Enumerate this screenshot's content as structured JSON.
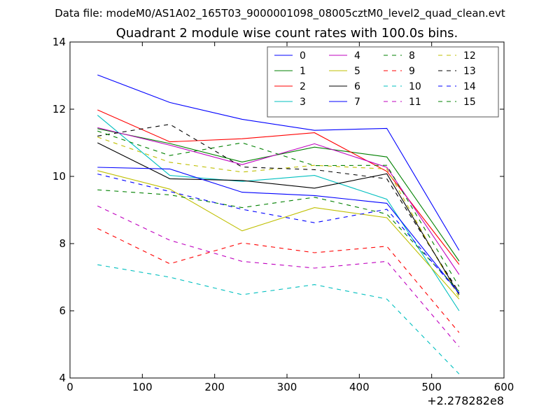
{
  "figure": {
    "suptitle": "Data file: modeM0/AS1A02_165T03_9000001098_08005cztM0_level2_quad_clean.evt"
  },
  "chart_data": {
    "type": "line",
    "title": "Quadrant 2 module wise count rates with 100.0s bins.",
    "xlabel": "",
    "ylabel": "",
    "x_offset_label": "+2.278282e8",
    "xlim": [
      0,
      600
    ],
    "ylim": [
      4,
      14
    ],
    "x_ticks": [
      "0",
      "100",
      "200",
      "300",
      "400",
      "500",
      "600"
    ],
    "y_ticks": [
      "4",
      "6",
      "8",
      "10",
      "12",
      "14"
    ],
    "x": [
      38,
      138,
      238,
      338,
      438,
      538
    ],
    "legend_position": "top-right",
    "legend_columns": 4,
    "series": [
      {
        "name": "0",
        "color": "#0000ff",
        "dash": "solid",
        "values": [
          13.02,
          12.2,
          11.7,
          11.37,
          11.43,
          7.8
        ]
      },
      {
        "name": "1",
        "color": "#008000",
        "dash": "solid",
        "values": [
          11.42,
          10.98,
          10.43,
          10.87,
          10.58,
          7.48
        ]
      },
      {
        "name": "2",
        "color": "#ff0000",
        "dash": "solid",
        "values": [
          11.98,
          11.03,
          11.12,
          11.3,
          10.15,
          7.38
        ]
      },
      {
        "name": "3",
        "color": "#00bfbf",
        "dash": "solid",
        "values": [
          11.82,
          10.03,
          9.85,
          10.03,
          9.32,
          6.0
        ]
      },
      {
        "name": "4",
        "color": "#bf00bf",
        "dash": "solid",
        "values": [
          11.45,
          10.93,
          10.35,
          10.97,
          10.27,
          7.08
        ]
      },
      {
        "name": "5",
        "color": "#bfbf00",
        "dash": "solid",
        "values": [
          10.17,
          9.62,
          8.38,
          9.07,
          8.77,
          6.35
        ]
      },
      {
        "name": "6",
        "color": "#000000",
        "dash": "solid",
        "values": [
          11.0,
          9.93,
          9.88,
          9.65,
          10.08,
          6.48
        ]
      },
      {
        "name": "7",
        "color": "#0000ff",
        "dash": "solid",
        "values": [
          10.27,
          10.22,
          9.53,
          9.43,
          9.2,
          6.52
        ]
      },
      {
        "name": "8",
        "color": "#008000",
        "dash": "dashed",
        "values": [
          9.6,
          9.45,
          9.07,
          9.38,
          8.88,
          6.58
        ]
      },
      {
        "name": "9",
        "color": "#ff0000",
        "dash": "dashed",
        "values": [
          8.45,
          7.4,
          8.02,
          7.73,
          7.92,
          5.35
        ]
      },
      {
        "name": "10",
        "color": "#00bfbf",
        "dash": "dashed",
        "values": [
          7.37,
          7.0,
          6.48,
          6.78,
          6.35,
          4.12
        ]
      },
      {
        "name": "11",
        "color": "#bf00bf",
        "dash": "dashed",
        "values": [
          9.12,
          8.1,
          7.47,
          7.27,
          7.47,
          4.93
        ]
      },
      {
        "name": "12",
        "color": "#bfbf00",
        "dash": "dashed",
        "values": [
          11.17,
          10.42,
          10.13,
          10.33,
          10.22,
          6.4
        ]
      },
      {
        "name": "13",
        "color": "#000000",
        "dash": "dashed",
        "values": [
          11.2,
          11.55,
          10.28,
          10.2,
          9.93,
          6.55
        ]
      },
      {
        "name": "14",
        "color": "#0000ff",
        "dash": "dashed",
        "values": [
          10.07,
          9.55,
          9.02,
          8.62,
          9.02,
          6.52
        ]
      },
      {
        "name": "15",
        "color": "#008000",
        "dash": "dashed",
        "values": [
          11.35,
          10.62,
          11.0,
          10.32,
          10.33,
          6.72
        ]
      }
    ]
  }
}
